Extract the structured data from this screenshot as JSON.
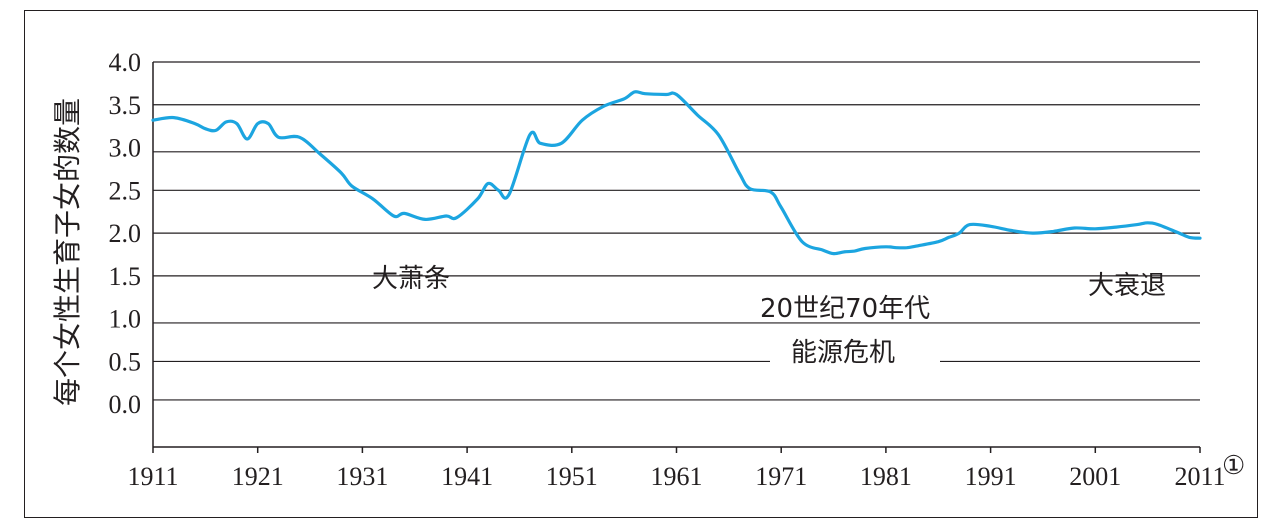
{
  "chart_data": {
    "type": "line",
    "title": "",
    "xlabel": "",
    "ylabel": "每个女性生育子女的数量",
    "xlim": [
      1911,
      2011
    ],
    "ylim": [
      -0.5,
      4.0
    ],
    "x_ticks": [
      "1911",
      "1921",
      "1931",
      "1941",
      "1951",
      "1961",
      "1971",
      "1981",
      "1991",
      "2001",
      "2011"
    ],
    "x_ticks_numeric": [
      1911,
      1921,
      1931,
      1941,
      1951,
      1961,
      1971,
      1981,
      1991,
      2001,
      2011
    ],
    "x_last_tick_note": "①",
    "y_ticks": [
      "0.0",
      "0.5",
      "1.0",
      "1.5",
      "2.0",
      "2.5",
      "3.0",
      "3.5",
      "4.0"
    ],
    "y_ticks_numeric": [
      0.0,
      0.5,
      1.0,
      1.5,
      2.0,
      2.5,
      3.0,
      3.5,
      4.0
    ],
    "y_tick_gridline_values": [
      0.05,
      0.5,
      0.95,
      1.5,
      2.0,
      2.5,
      2.95,
      3.5,
      4.0
    ],
    "grid": true,
    "color": "#1ca5e0",
    "series": [
      {
        "x": [
          1911,
          1913,
          1915,
          1916,
          1917,
          1918,
          1919,
          1920,
          1921,
          1922,
          1923,
          1925,
          1927,
          1929,
          1930,
          1932,
          1934,
          1935,
          1937,
          1939,
          1940,
          1942,
          1943,
          1944,
          1945,
          1947,
          1948,
          1950,
          1952,
          1954,
          1956,
          1957,
          1958,
          1960,
          1961,
          1963,
          1965,
          1967,
          1968,
          1970,
          1971,
          1973,
          1975,
          1976,
          1977,
          1978,
          1979,
          1981,
          1982,
          1983,
          1984,
          1986,
          1987,
          1988,
          1989,
          1991,
          1993,
          1995,
          1997,
          1999,
          2001,
          2003,
          2005,
          2006,
          2007,
          2009,
          2010,
          2011
        ],
        "y": [
          3.32,
          3.35,
          3.28,
          3.22,
          3.2,
          3.3,
          3.28,
          3.1,
          3.28,
          3.28,
          3.12,
          3.12,
          2.92,
          2.7,
          2.55,
          2.4,
          2.2,
          2.23,
          2.16,
          2.2,
          2.18,
          2.4,
          2.58,
          2.5,
          2.45,
          3.15,
          3.05,
          3.05,
          3.32,
          3.48,
          3.57,
          3.65,
          3.63,
          3.62,
          3.62,
          3.38,
          3.15,
          2.7,
          2.52,
          2.48,
          2.3,
          1.9,
          1.8,
          1.76,
          1.78,
          1.79,
          1.82,
          1.84,
          1.83,
          1.83,
          1.85,
          1.9,
          1.95,
          2.0,
          2.1,
          2.08,
          2.03,
          2.0,
          2.02,
          2.06,
          2.05,
          2.07,
          2.1,
          2.12,
          2.1,
          2.0,
          1.95,
          1.94
        ]
      }
    ],
    "annotations": [
      "大萧条",
      "20世纪70年代",
      "能源危机",
      "大衰退"
    ]
  }
}
